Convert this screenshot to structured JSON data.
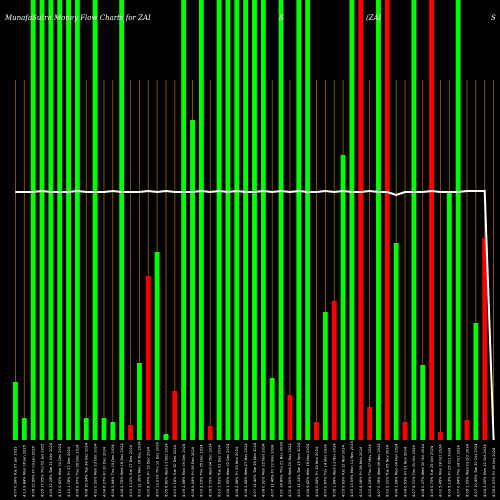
{
  "chart_data": {
    "type": "bar",
    "title": "MunafaSutra Money Flow Charts for ZAI",
    "title_fragments": [
      "S",
      "(ZAI",
      "S"
    ],
    "up_color": "#00ff00",
    "down_color": "#ff0000",
    "line_color": "#ffffff",
    "vline_color": "#a0620a",
    "background": "#000000",
    "ylim": [
      0,
      440
    ],
    "categories": [
      "Tue 07 Jan 2025",
      "Mon 06 Jan 2025",
      "Fri 03 Jan 2025",
      "Thu 02 Jan 2025",
      "Tue 31 Dec 2024",
      "Mon 30 Dec 2024",
      "Fri 27 Dec 2024",
      "Thu 26 Dec 2024",
      "Tue 24 Dec 2024",
      "Mon 23 Dec 2024",
      "Fri 20 Dec 2024",
      "Thu 19 Dec 2024",
      "Wed 18 Dec 2024",
      "Tue 17 Dec 2024",
      "Mon 16 Dec 2024",
      "Fri 13 Dec 2024",
      "Thu 12 Dec 2024",
      "Wed 11 Dec 2024",
      "Tue 10 Dec 2024",
      "Mon 09 Dec 2024",
      "Fri 06 Dec 2024",
      "Thu 05 Dec 2024",
      "Wed 04 Dec 2024",
      "Tue 03 Dec 2024",
      "Mon 02 Dec 2024",
      "Fri 29 Nov 2024",
      "Wed 27 Nov 2024",
      "Tue 26 Nov 2024",
      "Mon 25 Nov 2024",
      "Fri 22 Nov 2024",
      "Thu 21 Nov 2024",
      "Wed 20 Nov 2024",
      "Tue 19 Nov 2024",
      "Mon 18 Nov 2024",
      "Fri 15 Nov 2024",
      "Thu 14 Nov 2024",
      "Wed 13 Nov 2024",
      "Tue 12 Nov 2024",
      "Mon 11 Nov 2024",
      "Fri 08 Nov 2024",
      "Thu 07 Nov 2024",
      "Wed 06 Nov 2024",
      "Tue 05 Nov 2024",
      "Mon 04 Nov 2024",
      "Fri 01 Nov 2024",
      "Thu 31 Oct 2024",
      "Wed 30 Oct 2024",
      "Tue 29 Oct 2024",
      "Mon 28 Oct 2024",
      "Fri 25 Oct 2024",
      "Thu 24 Oct 2024",
      "Wed 23 Oct 2024",
      "Tue 22 Oct 2024",
      "Mon 21 Oct 2024",
      "Fri 18 Oct 2024"
    ],
    "tick_labels": [
      "4.07 0.39%",
      "4.13 9.84%",
      "4.06 10.69%",
      "4.05 17.05%",
      "4.05 12.28%",
      "4.10 0.62%",
      "4.10 1.78%",
      "4.06 0.97%",
      "4.08 10.94%",
      "4.02 0.20%",
      "4.04 6.27%",
      "4.04 3.94%",
      "4.06 2.75%",
      "4.03 1.10%",
      "4.02 12.36%",
      "4.00 8.47%",
      "4.07 13.31%",
      "4.05 6.82%",
      "4.03 0.16%",
      "4.09 2.56%",
      "4.06 9.04%",
      "4.02 2.15%",
      "4.06 5.70%",
      "4.03 1.63%",
      "4.04 1.99%",
      "4.06 2.46%",
      "4.06 3.45%",
      "4.07 12.40%",
      "4.08 0.92%",
      "4.07 11.46%",
      "4.01 14.89%",
      "4.01 6.20%",
      "4.01 11.34%",
      "4.04 9.62%",
      "4.04 0.94%",
      "4.07 0.87%",
      "4.06 1.64%",
      "4.05 9.95%",
      "4.05 13.09%",
      "4.00 4.06%",
      "4.03 4.25%",
      "4.07 0.78%",
      "4.02 0.22%",
      "4.04 1.08%",
      "4.04 0.53%",
      "4.07 4.71%",
      "4.08 0.37%",
      "4.05 0.73%",
      "4.02 5.45%",
      "4.09 5.13%",
      "4.07 0.64%",
      "4.06 1.05%",
      "4.07 10.49%",
      "4.04 3.00%",
      "4.05 0.07%"
    ],
    "values": [
      58,
      22,
      440,
      440,
      440,
      440,
      440,
      440,
      22,
      440,
      22,
      18,
      440,
      15,
      77,
      164,
      188,
      6,
      49,
      440,
      320,
      440,
      14,
      440,
      440,
      440,
      440,
      440,
      440,
      62,
      440,
      45,
      440,
      440,
      18,
      128,
      139,
      285,
      440,
      440,
      33,
      440,
      440,
      197,
      18,
      440,
      75,
      440,
      8,
      248,
      440,
      20,
      117,
      202,
      0
    ],
    "directions": [
      "up",
      "up",
      "up",
      "up",
      "up",
      "up",
      "up",
      "up",
      "up",
      "up",
      "up",
      "up",
      "up",
      "down",
      "up",
      "down",
      "up",
      "up",
      "down",
      "up",
      "up",
      "up",
      "down",
      "up",
      "up",
      "up",
      "up",
      "up",
      "up",
      "up",
      "up",
      "down",
      "up",
      "up",
      "down",
      "up",
      "down",
      "up",
      "up",
      "down",
      "down",
      "up",
      "down",
      "up",
      "down",
      "up",
      "up",
      "down",
      "down",
      "up",
      "up",
      "down",
      "up",
      "down",
      "up"
    ],
    "line": [
      248,
      248,
      248,
      249,
      248,
      248,
      248,
      249,
      248,
      248,
      248,
      249,
      248,
      248,
      248,
      249,
      248,
      249,
      248,
      248,
      248,
      249,
      248,
      249,
      248,
      249,
      248,
      248,
      249,
      248,
      249,
      248,
      249,
      248,
      248,
      249,
      248,
      249,
      248,
      248,
      249,
      248,
      248,
      245,
      248,
      248,
      248,
      249,
      248,
      248,
      248,
      249,
      249,
      249,
      0
    ]
  }
}
